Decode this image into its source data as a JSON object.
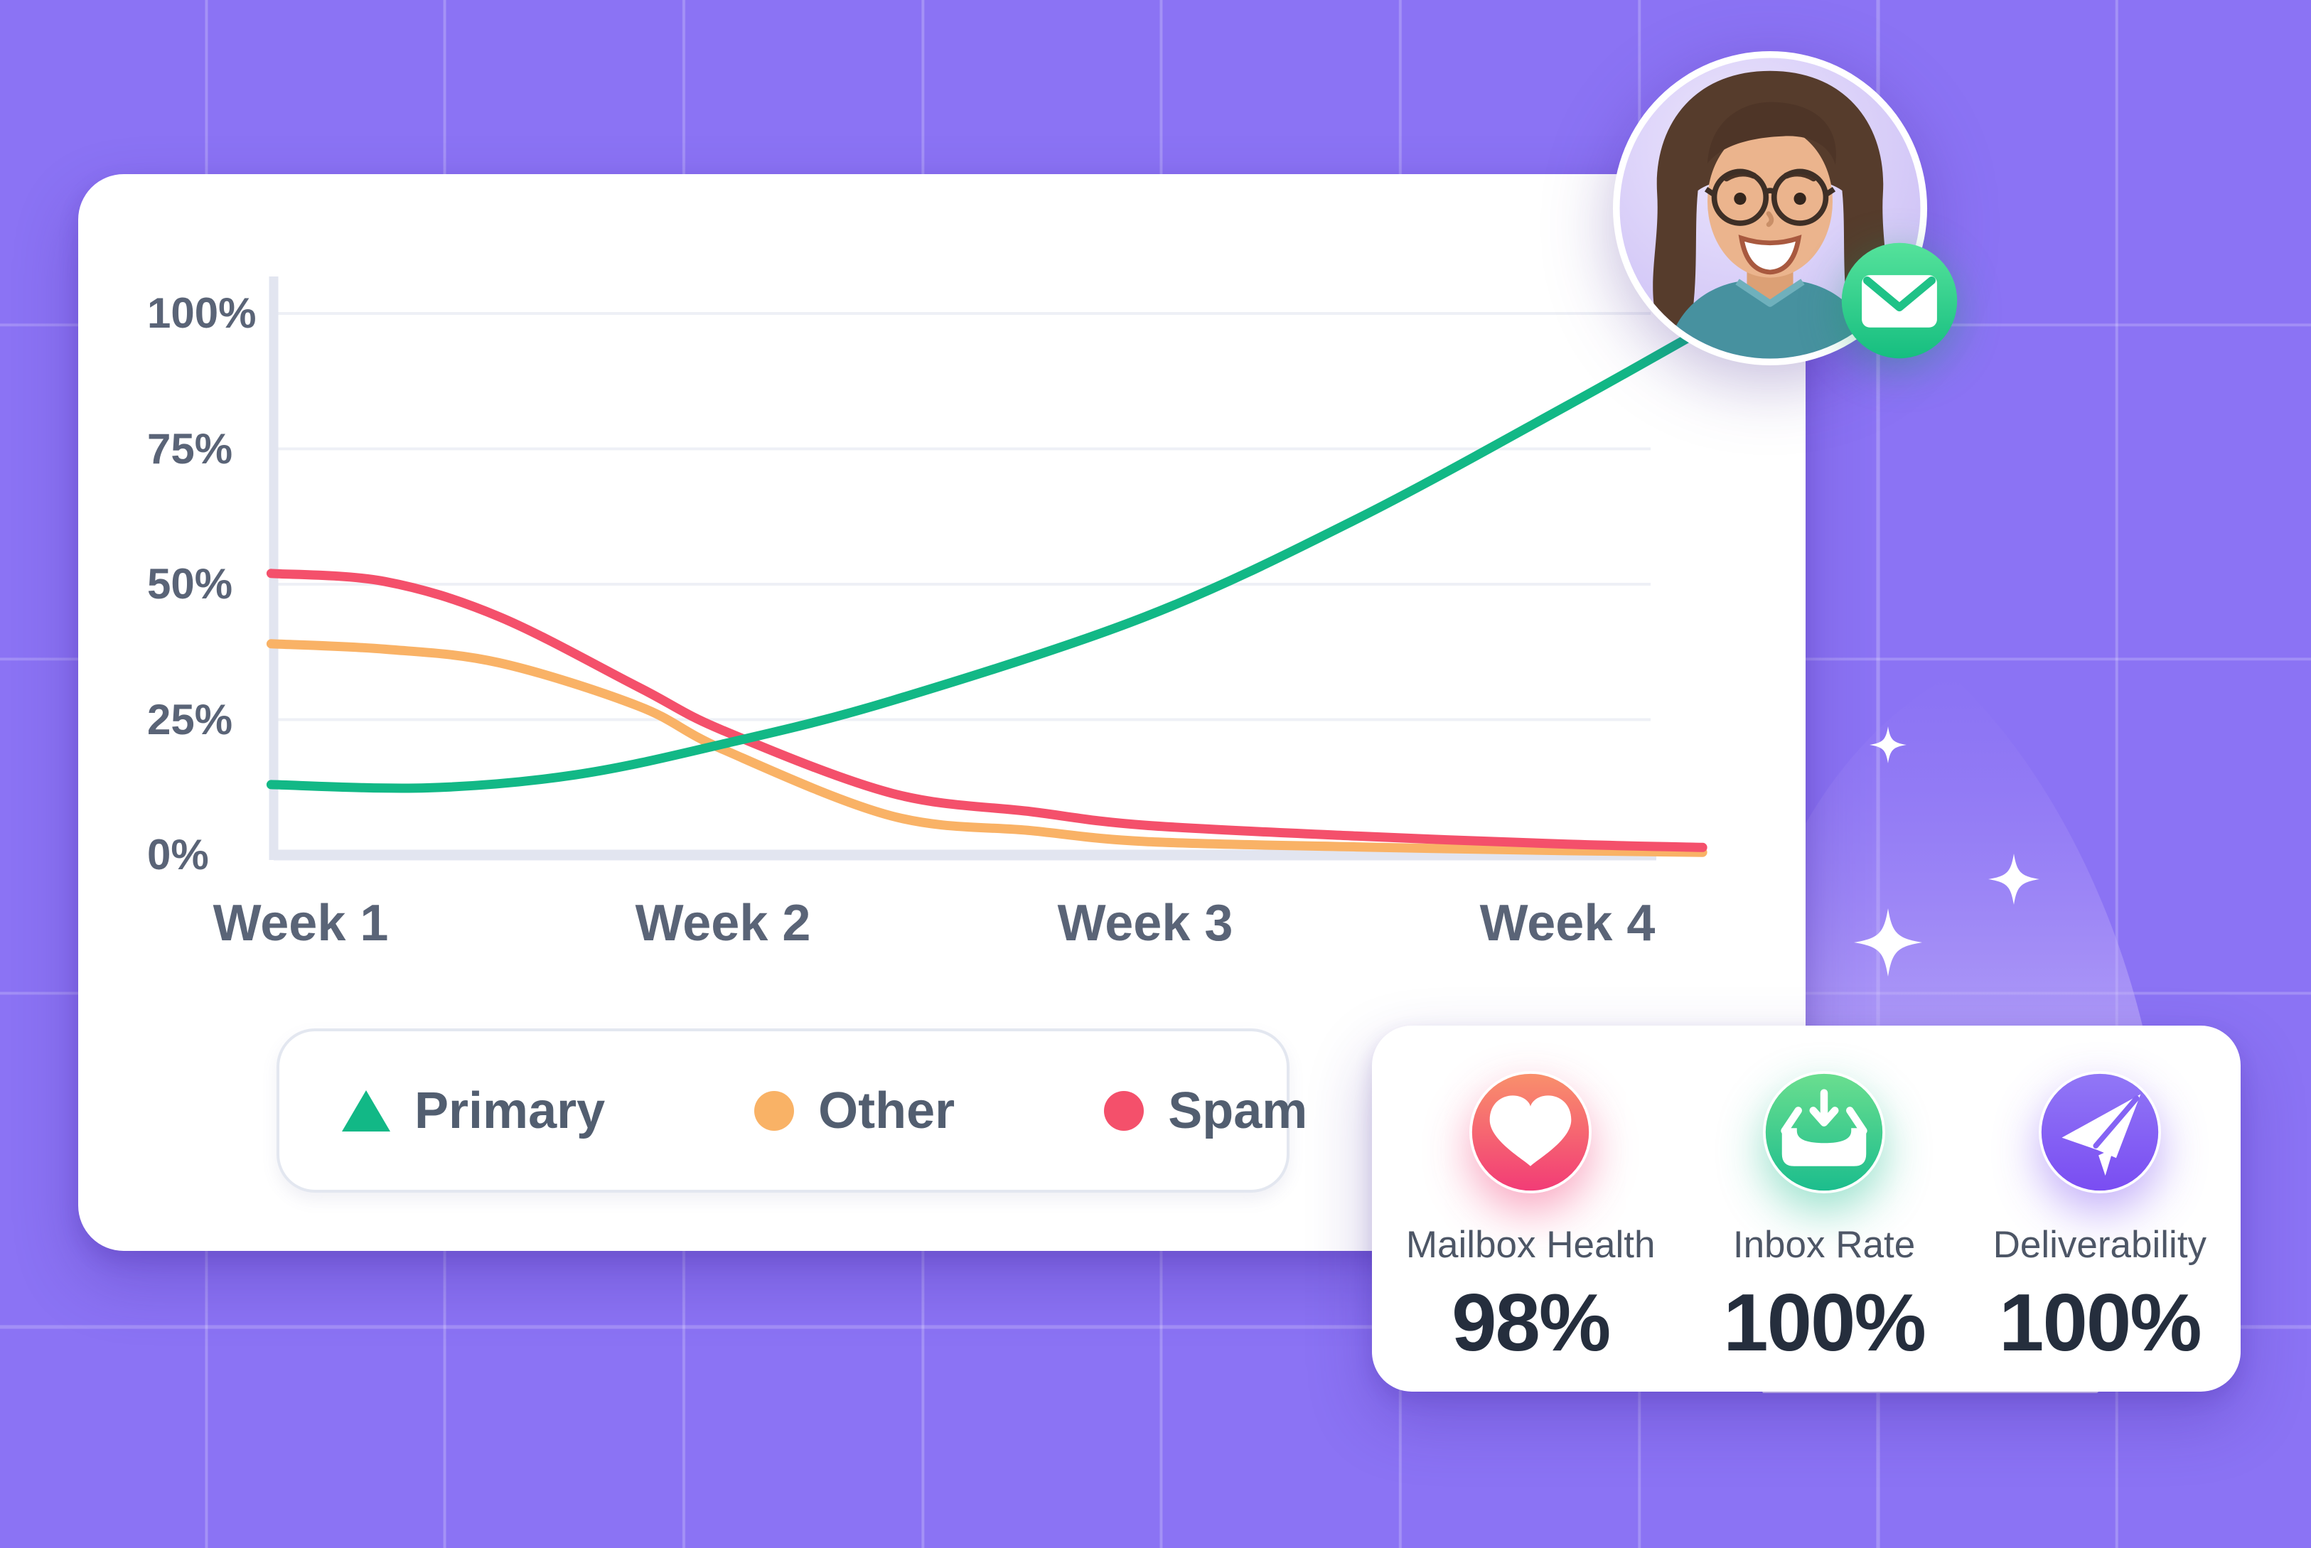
{
  "chart_data": {
    "type": "line",
    "title": "",
    "x_axis": {
      "tick_labels": [
        "Week 1",
        "Week 2",
        "Week 3",
        "Week 4"
      ]
    },
    "y_axis": {
      "tick_labels": [
        "100%",
        "75%",
        "50%",
        "25%",
        "0%"
      ],
      "range": [
        0,
        100
      ],
      "unit": "%"
    },
    "grid": true,
    "legend_position": "bottom-left",
    "series": [
      {
        "name": "Other",
        "color": "#f9b266",
        "marker": "circle",
        "week_values": [
          39,
          19.5,
          2.5,
          0.8
        ],
        "points": [
          [
            -0.07,
            39
          ],
          [
            0.2,
            38
          ],
          [
            0.47,
            35.5
          ],
          [
            0.8,
            27.5
          ],
          [
            1,
            19.5
          ],
          [
            1.4,
            7.2
          ],
          [
            1.73,
            4.5
          ],
          [
            2,
            2.5
          ],
          [
            2.5,
            1.5
          ],
          [
            3,
            0.8
          ],
          [
            3.32,
            0.5
          ]
        ]
      },
      {
        "name": "Spam",
        "color": "#f4506b",
        "marker": "circle",
        "week_values": [
          52,
          23,
          5.5,
          2
        ],
        "points": [
          [
            -0.07,
            52
          ],
          [
            0.2,
            50.5
          ],
          [
            0.47,
            44
          ],
          [
            0.8,
            31
          ],
          [
            1,
            23
          ],
          [
            1.4,
            11.4
          ],
          [
            1.73,
            8
          ],
          [
            2,
            5.5
          ],
          [
            2.5,
            3.5
          ],
          [
            3,
            2
          ],
          [
            3.32,
            1.4
          ]
        ]
      },
      {
        "name": "Primary",
        "color": "#12b886",
        "marker": "triangle",
        "week_values": [
          13,
          20.5,
          44,
          83
        ],
        "points": [
          [
            -0.07,
            13
          ],
          [
            0.3,
            12.4
          ],
          [
            0.65,
            14.8
          ],
          [
            1,
            20.5
          ],
          [
            1.4,
            28.5
          ],
          [
            2,
            44
          ],
          [
            2.5,
            62
          ],
          [
            3,
            83
          ],
          [
            3.32,
            97
          ]
        ]
      }
    ]
  },
  "legend": {
    "primary_label": "Primary",
    "other_label": "Other",
    "spam_label": "Spam"
  },
  "stats": {
    "items": [
      {
        "label": "Mailbox Health",
        "value": "98%",
        "icon": "heart-icon",
        "color_top": "#f9906c",
        "color_bottom": "#f23c76"
      },
      {
        "label": "Inbox Rate",
        "value": "100%",
        "icon": "inbox-arrow-down-icon",
        "color_top": "#6ade8f",
        "color_bottom": "#1cbd8d"
      },
      {
        "label": "Deliverability",
        "value": "100%",
        "icon": "paper-plane-icon",
        "color_top": "#9177f6",
        "color_bottom": "#7a4df2"
      }
    ]
  },
  "avatar": {
    "photo_alt": "Smiling woman with glasses",
    "badge_icon": "envelope-icon",
    "badge_color_top": "#55e29b",
    "badge_color_bottom": "#16be80"
  },
  "colors": {
    "background": "#8b73f4",
    "grid_line": "rgba(255,255,255,0.22)",
    "card": "#ffffff",
    "axis_text": "#5a6477",
    "gridline": "#eef0f6",
    "axis_line": "#e2e5f0",
    "stat_label": "#4d5666",
    "stat_value": "#252e3d",
    "sparkle": "#ffffff"
  }
}
